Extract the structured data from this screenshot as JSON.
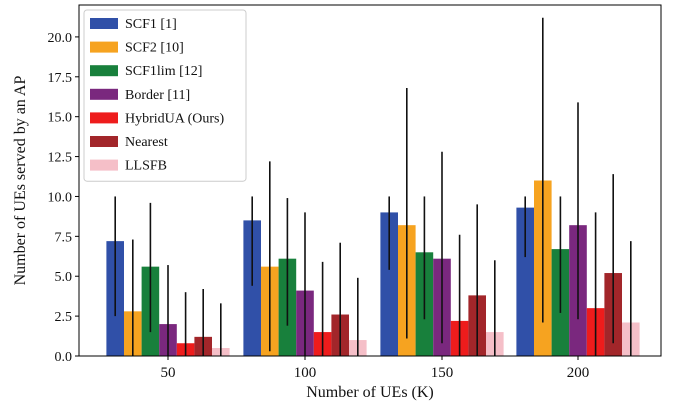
{
  "chart_data": {
    "type": "bar",
    "xlabel": "Number of UEs (K)",
    "ylabel": "Number of UEs served by an AP",
    "categories": [
      "50",
      "100",
      "150",
      "200"
    ],
    "ylim": [
      0,
      22
    ],
    "yticks": [
      "0.0",
      "2.5",
      "5.0",
      "7.5",
      "10.0",
      "12.5",
      "15.0",
      "17.5",
      "20.0"
    ],
    "ytick_values": [
      0,
      2.5,
      5,
      7.5,
      10,
      12.5,
      15,
      17.5,
      20
    ],
    "grid": false,
    "legend_position": "top-left",
    "error_bars": true,
    "series": [
      {
        "name": "SCF1 [1]",
        "color": "#3050a8",
        "values": [
          7.2,
          8.5,
          9.0,
          9.3
        ],
        "err_low": [
          2.5,
          4.4,
          5.4,
          6.2
        ],
        "err_high": [
          10.0,
          10.0,
          10.0,
          10.0
        ]
      },
      {
        "name": "SCF2 [10]",
        "color": "#f6a320",
        "values": [
          2.8,
          5.6,
          8.2,
          11.0
        ],
        "err_low": [
          0.0,
          0.3,
          1.1,
          2.1
        ],
        "err_high": [
          7.3,
          12.2,
          16.8,
          21.2
        ]
      },
      {
        "name": "SCF1lim [12]",
        "color": "#18803c",
        "values": [
          5.6,
          6.1,
          6.5,
          6.7
        ],
        "err_low": [
          1.5,
          1.9,
          2.3,
          2.7
        ],
        "err_high": [
          9.6,
          9.9,
          10.0,
          10.0
        ]
      },
      {
        "name": "Border [11]",
        "color": "#7a287e",
        "values": [
          2.0,
          4.1,
          6.1,
          8.2
        ],
        "err_low": [
          0.0,
          0.0,
          0.8,
          2.3
        ],
        "err_high": [
          5.7,
          9.0,
          12.8,
          15.9
        ]
      },
      {
        "name": "HybridUA (Ours)",
        "color": "#ee1c1c",
        "values": [
          0.8,
          1.5,
          2.2,
          3.0
        ],
        "err_low": [
          0.0,
          0.0,
          0.0,
          0.0
        ],
        "err_high": [
          4.0,
          5.9,
          7.6,
          9.0
        ]
      },
      {
        "name": "Nearest",
        "color": "#a2262a",
        "values": [
          1.2,
          2.6,
          3.8,
          5.2
        ],
        "err_low": [
          0.0,
          0.0,
          0.0,
          0.8
        ],
        "err_high": [
          4.2,
          7.1,
          9.5,
          11.4
        ]
      },
      {
        "name": "LLSFB",
        "color": "#f5bfc8",
        "values": [
          0.5,
          1.0,
          1.5,
          2.1
        ],
        "err_low": [
          0.0,
          0.0,
          0.0,
          0.0
        ],
        "err_high": [
          3.3,
          4.9,
          6.0,
          7.2
        ]
      }
    ]
  }
}
